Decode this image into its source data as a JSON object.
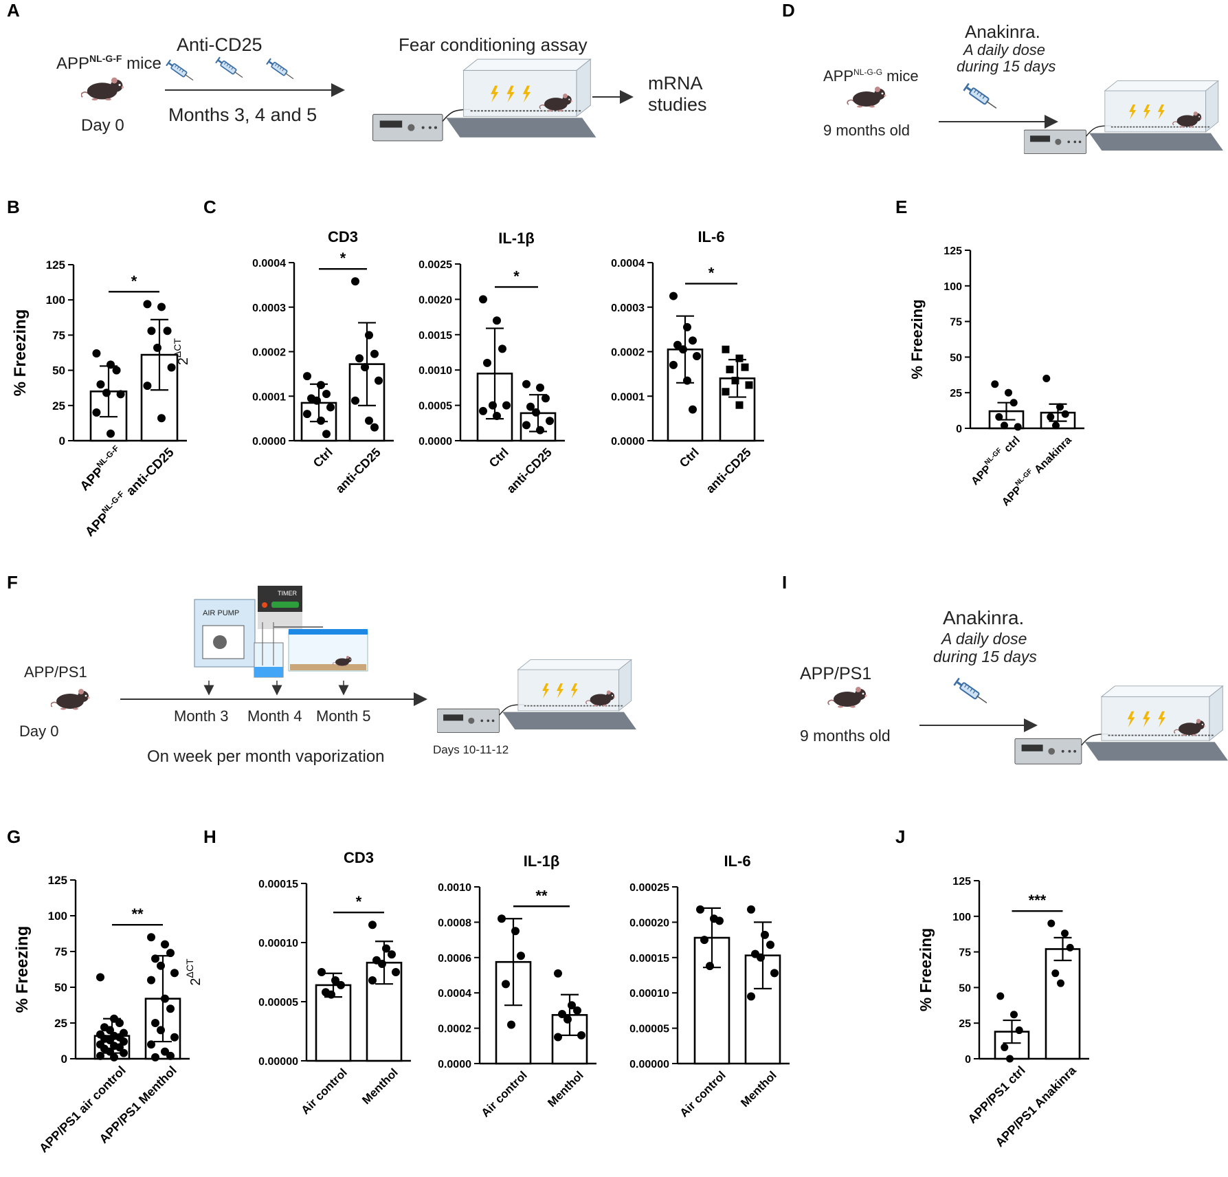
{
  "panel_letters": {
    "A": "A",
    "B": "B",
    "C": "C",
    "D": "D",
    "E": "E",
    "F": "F",
    "G": "G",
    "H": "H",
    "I": "I",
    "J": "J"
  },
  "schematic_A": {
    "mice": "APP",
    "mice_sup": "NL-G-F",
    "mice_suffix": " mice",
    "day0": "Day 0",
    "treatment": "Anti-CD25",
    "months": "Months 3, 4 and 5",
    "assay": "Fear conditioning assay",
    "mrna_1": "mRNA",
    "mrna_2": "studies"
  },
  "schematic_D": {
    "drug": "Anakinra.",
    "dose_1": "A daily dose",
    "dose_2": "during 15 days",
    "mice": "APP",
    "mice_sup": "NL-G-G",
    "mice_suffix": " mice",
    "age": "9 months old"
  },
  "schematic_F": {
    "mice": "APP/PS1",
    "day0": "Day 0",
    "air_pump": "AIR PUMP",
    "timer": "TIMER",
    "month3": "Month 3",
    "month4": "Month 4",
    "month5": "Month 5",
    "vapor": "On week per month vaporization",
    "days": "Days 10-11-12"
  },
  "schematic_I": {
    "drug": "Anakinra.",
    "dose_1": "A daily dose",
    "dose_2": "during 15 days",
    "mice": "APP/PS1",
    "age": "9 months old"
  },
  "colors": {
    "ink": "#000000",
    "syringe": "#3a6ea5",
    "bolt": "#f2b705",
    "mouse": "#3b2f2f",
    "box": "#dfe6ec",
    "base": "#6b7278"
  },
  "chart_data": [
    {
      "id": "B",
      "type": "bar",
      "title": "",
      "ylabel": "% Freezing",
      "ylim": [
        0,
        125
      ],
      "yticks": [
        "0",
        "25",
        "50",
        "75",
        "100",
        "125"
      ],
      "categories": [
        "APP^NL-G-F",
        "APP^NL-G-F anti-CD25"
      ],
      "values": [
        35,
        61
      ],
      "sd": [
        18,
        25
      ],
      "points": [
        [
          62,
          54,
          50,
          40,
          34,
          33,
          20,
          5
        ],
        [
          97,
          95,
          78,
          78,
          66,
          52,
          39,
          16
        ]
      ],
      "significance": "*"
    },
    {
      "id": "C1",
      "type": "bar",
      "title": "CD3",
      "ylabel": "2^ΔCT",
      "ylim": [
        0,
        0.0004
      ],
      "yticks": [
        "0.0000",
        "0.0001",
        "0.0002",
        "0.0003",
        "0.0004"
      ],
      "categories": [
        "Ctrl",
        "anti-CD25"
      ],
      "values": [
        8.5e-05,
        0.000172
      ],
      "sd": [
        4.2e-05,
        9.3e-05
      ],
      "points": [
        [
          0.000145,
          0.000125,
          0.000105,
          9.5e-05,
          9e-05,
          7.5e-05,
          6e-05,
          4.5e-05,
          1.5e-05
        ],
        [
          0.000358,
          0.000237,
          0.000195,
          0.000185,
          0.000165,
          0.000135,
          9e-05,
          4.5e-05,
          3e-05
        ]
      ],
      "significance": "*"
    },
    {
      "id": "C2",
      "type": "bar",
      "title": "IL-1β",
      "ylabel": "",
      "ylim": [
        0,
        0.0025
      ],
      "yticks": [
        "0.0000",
        "0.0005",
        "0.0010",
        "0.0015",
        "0.0020",
        "0.0025"
      ],
      "categories": [
        "Ctrl",
        "anti-CD25"
      ],
      "values": [
        0.00095,
        0.00039
      ],
      "sd": [
        0.00064,
        0.00026
      ],
      "points": [
        [
          0.002,
          0.0017,
          0.0013,
          0.0011,
          0.0005,
          0.0005,
          0.00042,
          0.00035
        ],
        [
          0.0008,
          0.00075,
          0.0006,
          0.00048,
          0.0004,
          0.00028,
          0.00022,
          0.00015
        ]
      ],
      "significance": "*"
    },
    {
      "id": "C3",
      "type": "bar",
      "title": "IL-6",
      "ylabel": "",
      "ylim": [
        0,
        0.0004
      ],
      "yticks": [
        "0.0000",
        "0.0001",
        "0.0002",
        "0.0003",
        "0.0004"
      ],
      "categories": [
        "Ctrl",
        "anti-CD25"
      ],
      "values": [
        0.000205,
        0.00014
      ],
      "sd": [
        7.5e-05,
        4.2e-05
      ],
      "points": [
        [
          0.000325,
          0.000255,
          0.000225,
          0.000215,
          0.000205,
          0.00019,
          0.00017,
          0.000135,
          7e-05
        ],
        [
          0.000205,
          0.000185,
          0.000165,
          0.00016,
          0.000135,
          0.000125,
          0.00011,
          8e-05
        ]
      ],
      "significance": "*"
    },
    {
      "id": "E",
      "type": "bar",
      "title": "",
      "ylabel": "% Freezing",
      "ylim": [
        0,
        125
      ],
      "yticks": [
        "0",
        "25",
        "50",
        "75",
        "100",
        "125"
      ],
      "categories": [
        "APP^NL-GF ctrl",
        "APP^NL-GF Anakinra"
      ],
      "values": [
        12,
        11
      ],
      "sd": [
        6,
        6
      ],
      "points": [
        [
          31,
          25,
          18,
          8,
          2,
          1
        ],
        [
          35,
          15,
          10,
          8,
          2
        ]
      ],
      "significance": ""
    },
    {
      "id": "G",
      "type": "bar",
      "title": "",
      "ylabel": "% Freezing",
      "ylim": [
        0,
        125
      ],
      "yticks": [
        "0",
        "25",
        "50",
        "75",
        "100",
        "125"
      ],
      "categories": [
        "APP/PS1 air control",
        "APP/PS1 Menthol"
      ],
      "values": [
        16,
        42
      ],
      "sd": [
        12,
        30
      ],
      "points": [
        [
          57,
          28,
          25,
          22,
          20,
          18,
          17,
          16,
          15,
          14,
          13,
          12,
          10,
          9,
          8,
          7,
          5,
          4,
          2,
          1
        ],
        [
          85,
          80,
          74,
          70,
          65,
          60,
          55,
          42,
          35,
          25,
          20,
          15,
          10,
          5,
          2,
          1
        ]
      ],
      "significance": "**"
    },
    {
      "id": "H1",
      "type": "bar",
      "title": "CD3",
      "ylabel": "2^ΔCT",
      "ylim": [
        0,
        0.00015
      ],
      "yticks": [
        "0.00000",
        "0.00005",
        "0.00010",
        "0.00015"
      ],
      "categories": [
        "Air control",
        "Menthol"
      ],
      "values": [
        6.4e-05,
        8.3e-05
      ],
      "sd": [
        1e-05,
        1.8e-05
      ],
      "points": [
        [
          7.5e-05,
          6.8e-05,
          6.4e-05,
          5.8e-05,
          5.6e-05
        ],
        [
          0.000115,
          9.5e-05,
          9e-05,
          8.5e-05,
          8.2e-05,
          7.5e-05,
          6.8e-05
        ]
      ],
      "significance": "*"
    },
    {
      "id": "H2",
      "type": "bar",
      "title": "IL-1β",
      "ylabel": "",
      "ylim": [
        0,
        0.001
      ],
      "yticks": [
        "0.0000",
        "0.0002",
        "0.0004",
        "0.0006",
        "0.0008",
        "0.0010"
      ],
      "categories": [
        "Air control",
        "Menthol"
      ],
      "values": [
        0.000575,
        0.000275
      ],
      "sd": [
        0.000245,
        0.000115
      ],
      "points": [
        [
          0.00082,
          0.00075,
          0.00061,
          0.00045,
          0.00022
        ],
        [
          0.00051,
          0.00033,
          0.0003,
          0.00028,
          0.00025,
          0.00016,
          0.00015
        ]
      ],
      "significance": "**"
    },
    {
      "id": "H3",
      "type": "bar",
      "title": "IL-6",
      "ylabel": "",
      "ylim": [
        0,
        0.00025
      ],
      "yticks": [
        "0.00000",
        "0.00005",
        "0.00010",
        "0.00015",
        "0.00020",
        "0.00025"
      ],
      "categories": [
        "Air control",
        "Menthol"
      ],
      "values": [
        0.000178,
        0.000153
      ],
      "sd": [
        4.2e-05,
        4.7e-05
      ],
      "points": [
        [
          0.000218,
          0.000205,
          0.000202,
          0.000175,
          0.000138
        ],
        [
          0.000218,
          0.000182,
          0.000168,
          0.000155,
          0.00015,
          0.000128,
          9.5e-05
        ]
      ],
      "significance": ""
    },
    {
      "id": "J",
      "type": "bar",
      "title": "",
      "ylabel": "% Freezing",
      "ylim": [
        0,
        125
      ],
      "yticks": [
        "0",
        "25",
        "50",
        "75",
        "100",
        "125"
      ],
      "categories": [
        "APP/PS1 ctrl",
        "APP/PS1 Anakinra"
      ],
      "values": [
        19,
        77
      ],
      "sd": [
        8,
        8
      ],
      "points": [
        [
          44,
          31,
          20,
          8,
          0
        ],
        [
          95,
          88,
          78,
          60,
          53
        ]
      ],
      "significance": "***"
    }
  ]
}
